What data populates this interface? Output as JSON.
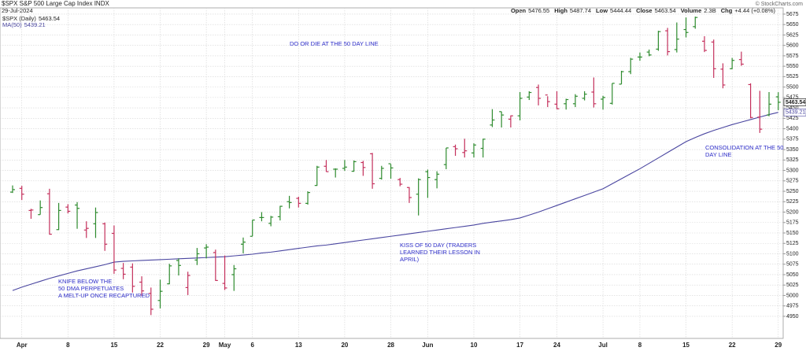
{
  "chart_data": {
    "type": "ohlc",
    "title": "$SPX S&P 500 Large Cap Index INDX",
    "date": "29-Jul-2024",
    "copyright": "© StockCharts.com",
    "stats": [
      {
        "label": "Open",
        "value": "5476.55"
      },
      {
        "label": "High",
        "value": "5487.74"
      },
      {
        "label": "Low",
        "value": "5444.44"
      },
      {
        "label": "Close",
        "value": "5463.54"
      },
      {
        "label": "Volume",
        "value": "2.3B"
      },
      {
        "label": "Chg",
        "value": "+4.44 (+0.08%)"
      }
    ],
    "annotations": [
      [
        "DO OR DIE AT THE 50 DAY LINE"
      ],
      [
        "KNIFE BELOW THE",
        "50 DMA PERPETUATES",
        "A MELT-UP ONCE RECAPTURED"
      ],
      [
        "KISS OF 50 DAY (TRADERS",
        "LEARNED THEIR LESSON IN",
        "APRIL)"
      ],
      [
        "CONSOLIDATION AT THE 50",
        "DAY LINE"
      ]
    ],
    "categories": [
      null,
      "Apr",
      null,
      null,
      null,
      null,
      "8",
      null,
      null,
      null,
      null,
      "15",
      null,
      null,
      null,
      null,
      "22",
      null,
      null,
      null,
      null,
      "29",
      null,
      "May",
      null,
      null,
      "6",
      null,
      null,
      null,
      null,
      "13",
      null,
      null,
      null,
      null,
      "20",
      null,
      null,
      null,
      null,
      "28",
      null,
      null,
      null,
      "Jun",
      null,
      null,
      null,
      null,
      "10",
      null,
      null,
      null,
      null,
      "17",
      null,
      null,
      null,
      "24",
      null,
      null,
      null,
      null,
      "Jul",
      null,
      null,
      null,
      "8",
      null,
      null,
      null,
      null,
      "15",
      null,
      null,
      null,
      null,
      "22",
      null,
      null,
      null,
      null,
      "29"
    ],
    "ohlc": {
      "name": "$SPX (Daily)",
      "value_label": "5463.54",
      "up_color": "#2e8b2e",
      "down_color": "#c4305c",
      "open": [
        5248,
        5257,
        5204,
        5194,
        5244,
        5158,
        5212,
        5217,
        5157,
        5172,
        5172,
        5149,
        5065,
        5068,
        5032,
        5005,
        4988,
        5028,
        5084,
        5019,
        5085,
        5114,
        5103,
        5029,
        5050,
        5123,
        5142,
        5187,
        5173,
        5189,
        5225,
        5233,
        5221,
        5264,
        5310,
        5303,
        5305,
        5298,
        5319,
        5340,
        5281,
        5316,
        5278,
        5259,
        5243,
        5297,
        5278,
        5314,
        5357,
        5343,
        5342,
        5353,
        5409,
        5441,
        5423,
        5431,
        5476,
        5499,
        5481,
        5459,
        5460,
        5460,
        5473,
        5488,
        5471,
        5461,
        5507,
        5537,
        5572,
        5584,
        5591,
        5635,
        5590,
        5638,
        5645,
        5610,
        5608,
        5543,
        5544,
        5566,
        5506,
        5428,
        5433,
        5476.55
      ],
      "high": [
        5264,
        5263,
        5208,
        5228,
        5256,
        5222,
        5219,
        5224,
        5178,
        5211,
        5175,
        5168,
        5078,
        5077,
        5046,
        5019,
        5038,
        5076,
        5089,
        5057,
        5114,
        5123,
        5110,
        5096,
        5073,
        5139,
        5181,
        5200,
        5191,
        5215,
        5239,
        5237,
        5250,
        5311,
        5325,
        5305,
        5325,
        5324,
        5323,
        5342,
        5311,
        5315,
        5282,
        5260,
        5281,
        5302,
        5298,
        5354,
        5362,
        5376,
        5365,
        5376,
        5447,
        5441,
        5432,
        5488,
        5490,
        5506,
        5478,
        5490,
        5472,
        5483,
        5490,
        5523,
        5479,
        5509,
        5539,
        5570,
        5583,
        5590,
        5635,
        5642,
        5655,
        5667,
        5669,
        5622,
        5614,
        5557,
        5570,
        5585,
        5509,
        5491,
        5488,
        5487.74
      ],
      "low": [
        5246,
        5229,
        5184,
        5194,
        5146,
        5157,
        5197,
        5160,
        5138,
        5138,
        5107,
        5052,
        5039,
        5007,
        4999,
        4953,
        4969,
        5027,
        5048,
        5001,
        5073,
        5089,
        5035,
        5013,
        5011,
        5101,
        5142,
        5178,
        5166,
        5180,
        5209,
        5211,
        5218,
        5263,
        5297,
        5283,
        5299,
        5297,
        5287,
        5256,
        5278,
        5280,
        5262,
        5222,
        5192,
        5234,
        5257,
        5303,
        5335,
        5331,
        5331,
        5331,
        5404,
        5403,
        5403,
        5420,
        5469,
        5456,
        5452,
        5447,
        5446,
        5452,
        5468,
        5451,
        5446,
        5458,
        5507,
        5531,
        5563,
        5574,
        5587,
        5576,
        5583,
        5619,
        5640,
        5584,
        5522,
        5497,
        5543,
        5551,
        5425,
        5390,
        5430,
        5444.44
      ],
      "close": [
        5254,
        5243,
        5205,
        5211,
        5147,
        5204,
        5202,
        5209,
        5161,
        5199,
        5123,
        5061,
        5051,
        5022,
        5011,
        4967,
        5010,
        5071,
        5072,
        5048,
        5100,
        5116,
        5036,
        5018,
        5064,
        5128,
        5181,
        5187,
        5188,
        5214,
        5223,
        5221,
        5247,
        5308,
        5297,
        5303,
        5308,
        5321,
        5307,
        5268,
        5305,
        5306,
        5267,
        5235,
        5278,
        5283,
        5291,
        5354,
        5352,
        5347,
        5361,
        5375,
        5421,
        5433,
        5431,
        5473,
        5487,
        5473,
        5465,
        5448,
        5470,
        5478,
        5483,
        5460,
        5475,
        5509,
        5537,
        5567,
        5572,
        5577,
        5633,
        5585,
        5615,
        5631,
        5667,
        5588,
        5544,
        5505,
        5564,
        5555,
        5427,
        5399,
        5459,
        5463.54
      ]
    },
    "series": [
      {
        "name": "MA(50)",
        "value_label": "5439.21",
        "color": "#4a46a0",
        "values": [
          5012,
          5020,
          5027,
          5034,
          5041,
          5047,
          5053,
          5059,
          5064,
          5069,
          5074,
          5080,
          5082,
          5083,
          5084,
          5085,
          5086,
          5087,
          5088,
          5089,
          5090,
          5091,
          5092,
          5093,
          5095,
          5097,
          5099,
          5102,
          5104,
          5107,
          5110,
          5113,
          5116,
          5119,
          5121,
          5124,
          5127,
          5130,
          5133,
          5136,
          5139,
          5142,
          5145,
          5148,
          5151,
          5154,
          5157,
          5160,
          5163,
          5166,
          5169,
          5173,
          5176,
          5179,
          5182,
          5186,
          5193,
          5200,
          5208,
          5216,
          5224,
          5232,
          5240,
          5248,
          5256,
          5268,
          5280,
          5292,
          5304,
          5317,
          5330,
          5343,
          5356,
          5369,
          5379,
          5388,
          5396,
          5403,
          5410,
          5416,
          5422,
          5428,
          5434,
          5439.21
        ]
      }
    ],
    "ylim": [
      4897,
      5690
    ],
    "yticks": [
      4950,
      4975,
      5000,
      5025,
      5050,
      5075,
      5100,
      5125,
      5150,
      5175,
      5200,
      5225,
      5250,
      5275,
      5300,
      5325,
      5350,
      5375,
      5400,
      5425,
      5450,
      5475,
      5500,
      5525,
      5550,
      5575,
      5600,
      5625,
      5650,
      5675
    ],
    "grid": true
  }
}
